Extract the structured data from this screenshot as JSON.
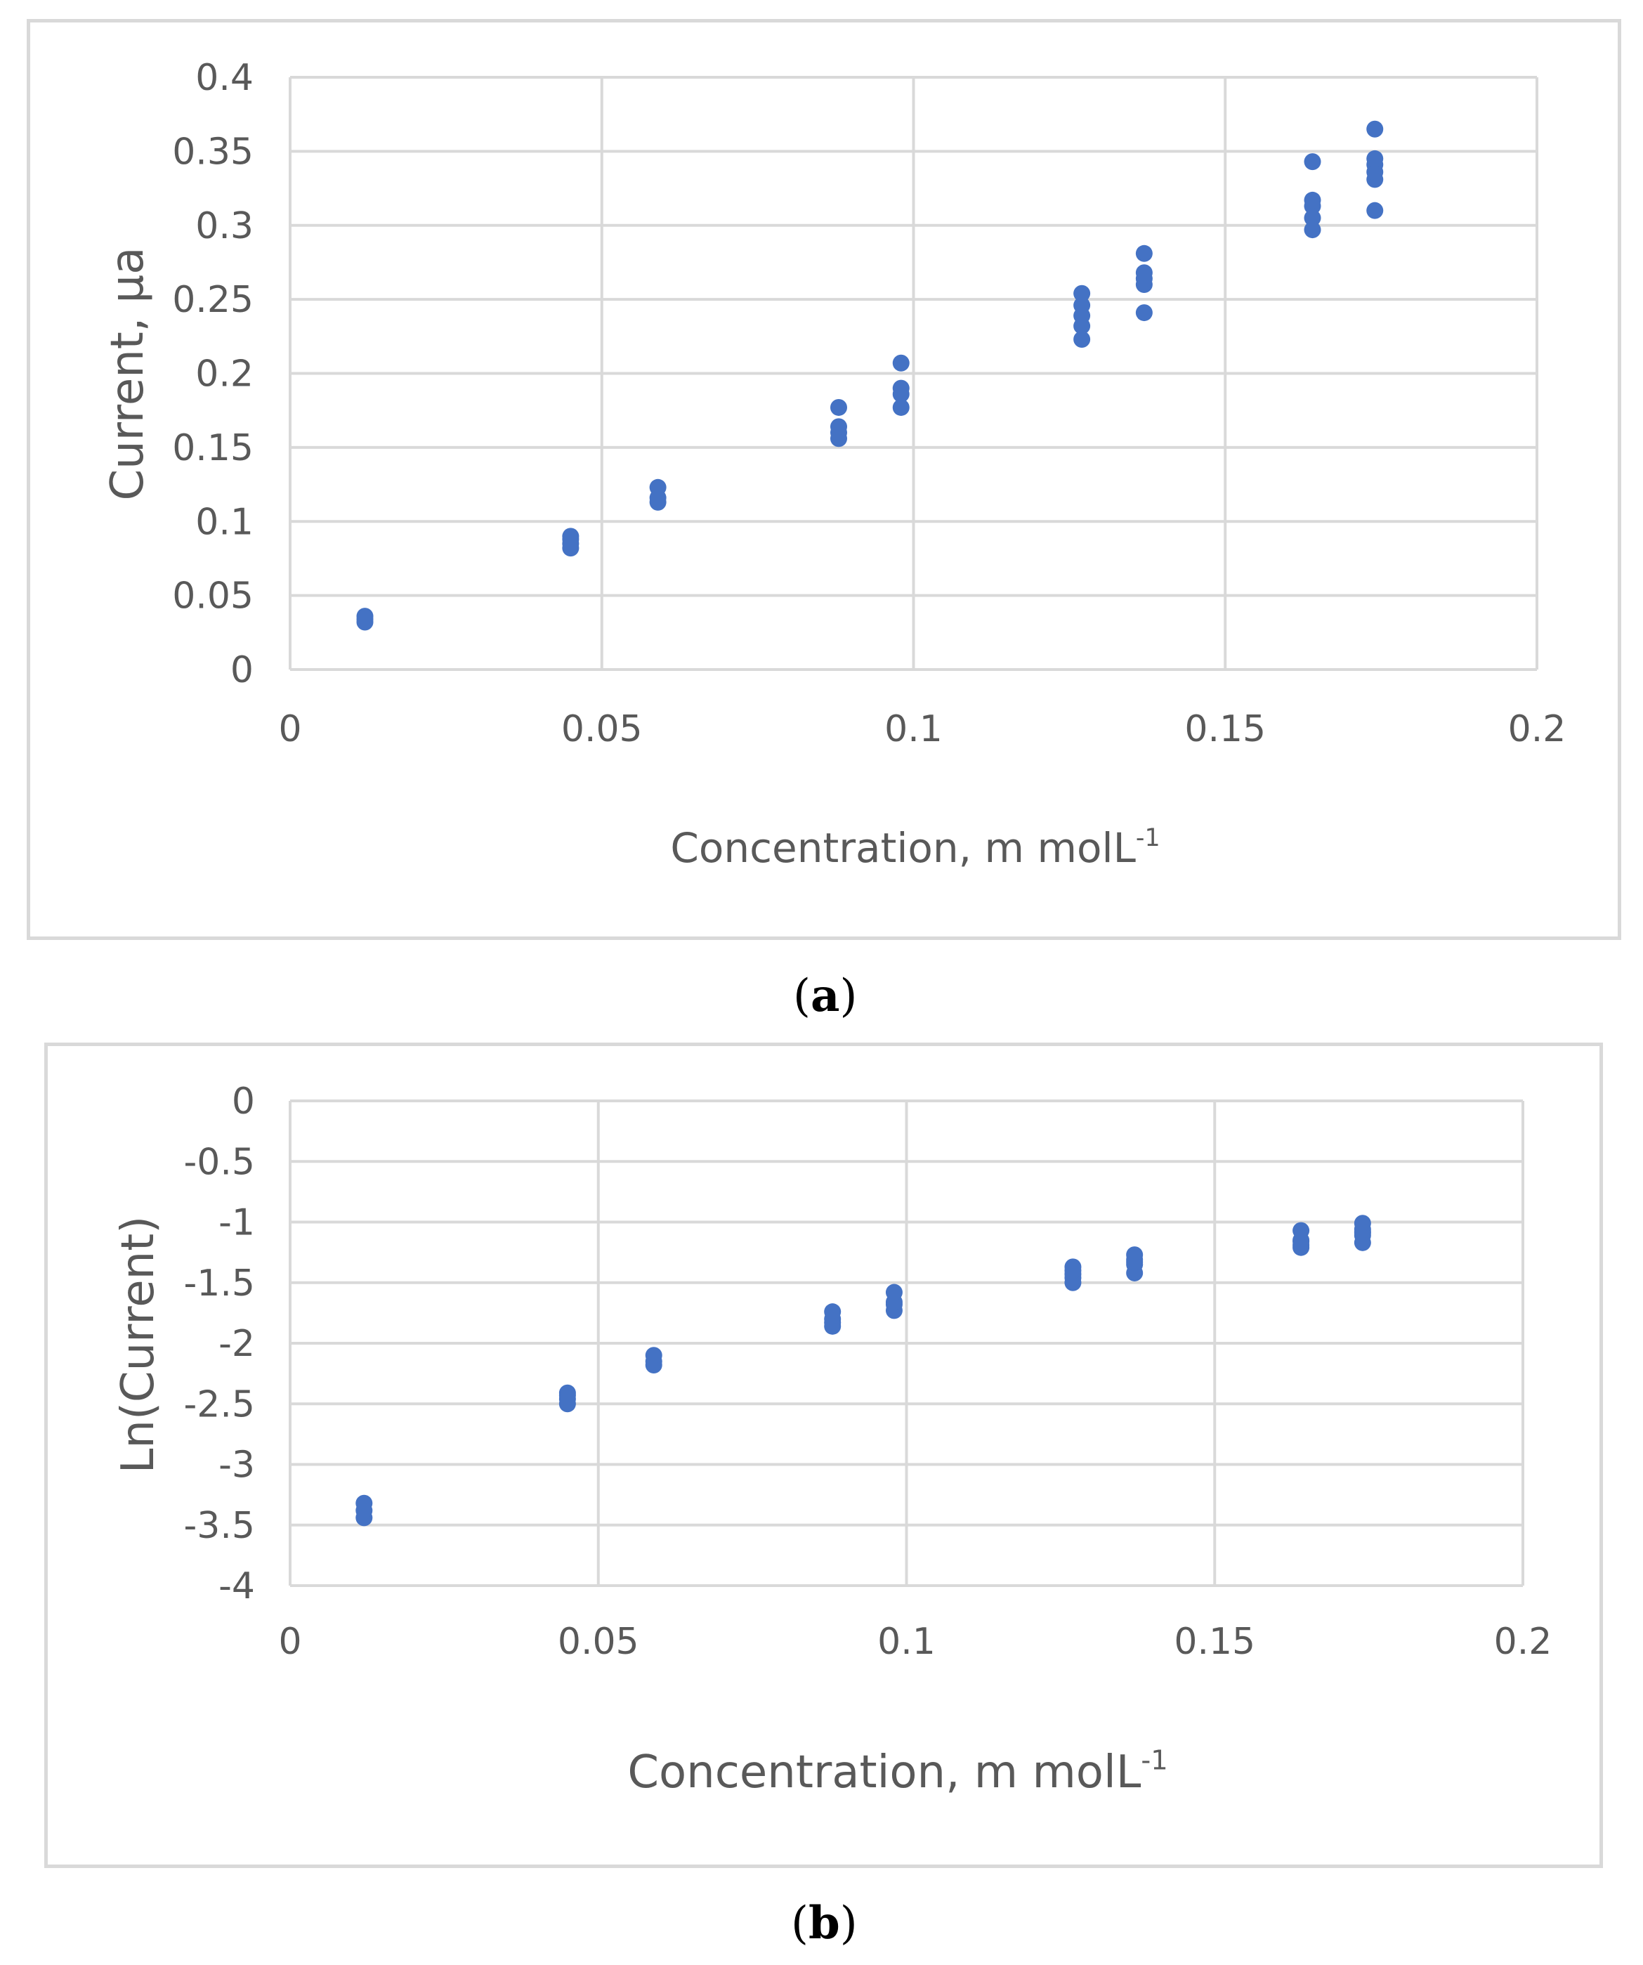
{
  "charts": [
    {
      "id": "a",
      "caption": {
        "open": "(",
        "letter": "a",
        "close": ")"
      },
      "chart_data": {
        "type": "scatter",
        "title": "",
        "xlabel": "Concentration, m molL",
        "xlabel_sup": "-1",
        "ylabel": "Current, µa",
        "xlim": [
          0,
          0.2
        ],
        "ylim": [
          0,
          0.4
        ],
        "xticks": [
          "0",
          "0.05",
          "0.1",
          "0.15",
          "0.2"
        ],
        "xtick_values": [
          0,
          0.05,
          0.1,
          0.15,
          0.2
        ],
        "yticks": [
          "0",
          "0.05",
          "0.1",
          "0.15",
          "0.2",
          "0.25",
          "0.3",
          "0.35",
          "0.4"
        ],
        "ytick_values": [
          0,
          0.05,
          0.1,
          0.15,
          0.2,
          0.25,
          0.3,
          0.35,
          0.4
        ],
        "grid": true,
        "marker_color": "#4472C4",
        "points": [
          [
            0.012,
            0.032
          ],
          [
            0.012,
            0.034
          ],
          [
            0.012,
            0.036
          ],
          [
            0.045,
            0.082
          ],
          [
            0.045,
            0.085
          ],
          [
            0.045,
            0.088
          ],
          [
            0.045,
            0.09
          ],
          [
            0.059,
            0.113
          ],
          [
            0.059,
            0.116
          ],
          [
            0.059,
            0.123
          ],
          [
            0.088,
            0.156
          ],
          [
            0.088,
            0.16
          ],
          [
            0.088,
            0.164
          ],
          [
            0.088,
            0.177
          ],
          [
            0.098,
            0.177
          ],
          [
            0.098,
            0.186
          ],
          [
            0.098,
            0.19
          ],
          [
            0.098,
            0.207
          ],
          [
            0.127,
            0.223
          ],
          [
            0.127,
            0.232
          ],
          [
            0.127,
            0.239
          ],
          [
            0.127,
            0.246
          ],
          [
            0.127,
            0.254
          ],
          [
            0.137,
            0.241
          ],
          [
            0.137,
            0.26
          ],
          [
            0.137,
            0.264
          ],
          [
            0.137,
            0.268
          ],
          [
            0.137,
            0.281
          ],
          [
            0.164,
            0.297
          ],
          [
            0.164,
            0.305
          ],
          [
            0.164,
            0.313
          ],
          [
            0.164,
            0.317
          ],
          [
            0.164,
            0.343
          ],
          [
            0.174,
            0.31
          ],
          [
            0.174,
            0.331
          ],
          [
            0.174,
            0.336
          ],
          [
            0.174,
            0.341
          ],
          [
            0.174,
            0.345
          ],
          [
            0.174,
            0.365
          ]
        ]
      }
    },
    {
      "id": "b",
      "caption": {
        "open": "(",
        "letter": "b",
        "close": ")"
      },
      "chart_data": {
        "type": "scatter",
        "title": "",
        "xlabel": "Concentration, m molL",
        "xlabel_sup": "-1",
        "ylabel": "Ln(Current)",
        "xlim": [
          0,
          0.2
        ],
        "ylim": [
          -4,
          0
        ],
        "xticks": [
          "0",
          "0.05",
          "0.1",
          "0.15",
          "0.2"
        ],
        "xtick_values": [
          0,
          0.05,
          0.1,
          0.15,
          0.2
        ],
        "yticks": [
          "-4",
          "-3.5",
          "-3",
          "-2.5",
          "-2",
          "-1.5",
          "-1",
          "-0.5",
          "0"
        ],
        "ytick_values": [
          -4,
          -3.5,
          -3,
          -2.5,
          -2,
          -1.5,
          -1,
          -0.5,
          0
        ],
        "grid": true,
        "marker_color": "#4472C4",
        "points": [
          [
            0.012,
            -3.44
          ],
          [
            0.012,
            -3.38
          ],
          [
            0.012,
            -3.32
          ],
          [
            0.045,
            -2.5
          ],
          [
            0.045,
            -2.46
          ],
          [
            0.045,
            -2.43
          ],
          [
            0.045,
            -2.41
          ],
          [
            0.059,
            -2.18
          ],
          [
            0.059,
            -2.15
          ],
          [
            0.059,
            -2.1
          ],
          [
            0.088,
            -1.86
          ],
          [
            0.088,
            -1.83
          ],
          [
            0.088,
            -1.8
          ],
          [
            0.088,
            -1.74
          ],
          [
            0.098,
            -1.73
          ],
          [
            0.098,
            -1.68
          ],
          [
            0.098,
            -1.66
          ],
          [
            0.098,
            -1.58
          ],
          [
            0.127,
            -1.5
          ],
          [
            0.127,
            -1.46
          ],
          [
            0.127,
            -1.43
          ],
          [
            0.127,
            -1.4
          ],
          [
            0.127,
            -1.37
          ],
          [
            0.137,
            -1.42
          ],
          [
            0.137,
            -1.35
          ],
          [
            0.137,
            -1.33
          ],
          [
            0.137,
            -1.31
          ],
          [
            0.137,
            -1.27
          ],
          [
            0.164,
            -1.21
          ],
          [
            0.164,
            -1.19
          ],
          [
            0.164,
            -1.16
          ],
          [
            0.164,
            -1.15
          ],
          [
            0.164,
            -1.07
          ],
          [
            0.174,
            -1.17
          ],
          [
            0.174,
            -1.11
          ],
          [
            0.174,
            -1.09
          ],
          [
            0.174,
            -1.08
          ],
          [
            0.174,
            -1.06
          ],
          [
            0.174,
            -1.01
          ]
        ]
      }
    }
  ]
}
